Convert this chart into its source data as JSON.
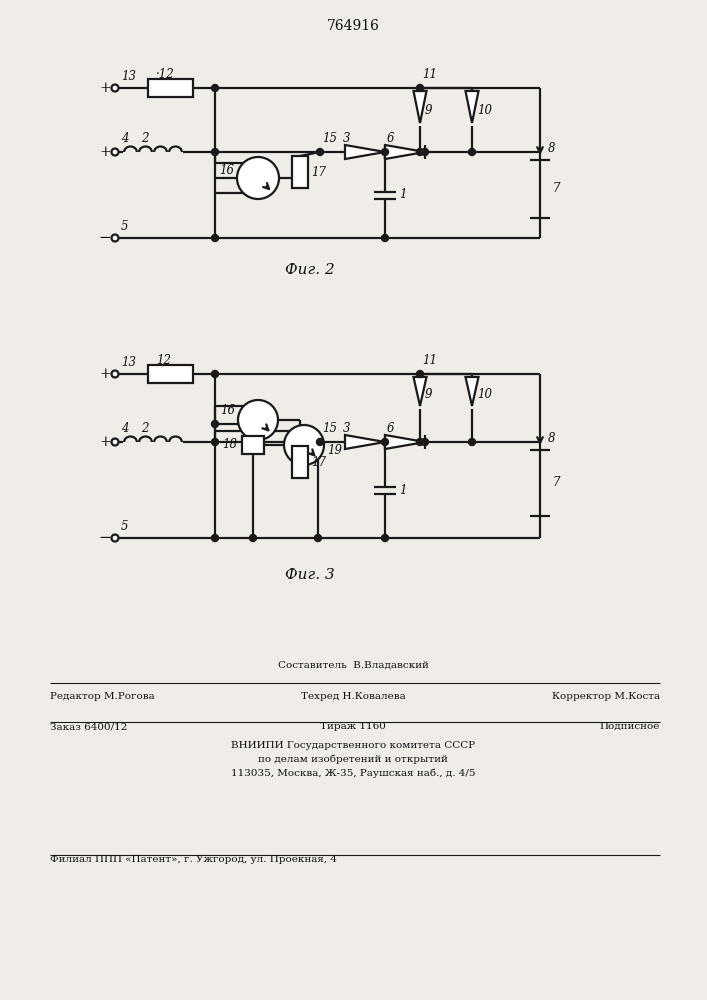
{
  "title_number": "764916",
  "fig2_label": "Фиг. 2",
  "fig3_label": "Фиг. 3",
  "background_color": "#f0ede8",
  "line_color": "#1a1a1a",
  "text_color": "#111111",
  "footer": {
    "line1_center": "Составитель  В.Владавский",
    "line2_left": "Редактор М.Рогова",
    "line2_center": "Техред Н.Ковалева",
    "line2_right": "Корректор М.Коста",
    "line3_left": "Заказ 6400/12",
    "line3_center": "Тираж 1160",
    "line3_right": "Подписное",
    "line4": "ВНИИПИ Государственного комитета СССР",
    "line5": "по делам изобретений и открытий",
    "line6": "113035, Москва, Ж-35, Раушская наб., д. 4/5",
    "line7": "Филиал ППП «Патент», г. Ужгород, ул. Проекная, 4"
  }
}
